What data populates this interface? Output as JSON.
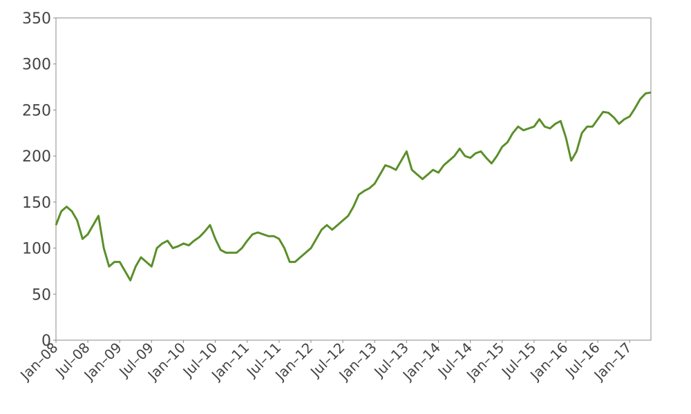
{
  "chart_data": {
    "type": "line",
    "x": [
      "2008-01",
      "2008-02",
      "2008-03",
      "2008-04",
      "2008-05",
      "2008-06",
      "2008-07",
      "2008-08",
      "2008-09",
      "2008-10",
      "2008-11",
      "2008-12",
      "2009-01",
      "2009-02",
      "2009-03",
      "2009-04",
      "2009-05",
      "2009-06",
      "2009-07",
      "2009-08",
      "2009-09",
      "2009-10",
      "2009-11",
      "2009-12",
      "2010-01",
      "2010-02",
      "2010-03",
      "2010-04",
      "2010-05",
      "2010-06",
      "2010-07",
      "2010-08",
      "2010-09",
      "2010-10",
      "2010-11",
      "2010-12",
      "2011-01",
      "2011-02",
      "2011-03",
      "2011-04",
      "2011-05",
      "2011-06",
      "2011-07",
      "2011-08",
      "2011-09",
      "2011-10",
      "2011-11",
      "2011-12",
      "2012-01",
      "2012-02",
      "2012-03",
      "2012-04",
      "2012-05",
      "2012-06",
      "2012-07",
      "2012-08",
      "2012-09",
      "2012-10",
      "2012-11",
      "2012-12",
      "2013-01",
      "2013-02",
      "2013-03",
      "2013-04",
      "2013-05",
      "2013-06",
      "2013-07",
      "2013-08",
      "2013-09",
      "2013-10",
      "2013-11",
      "2013-12",
      "2014-01",
      "2014-02",
      "2014-03",
      "2014-04",
      "2014-05",
      "2014-06",
      "2014-07",
      "2014-08",
      "2014-09",
      "2014-10",
      "2014-11",
      "2014-12",
      "2015-01",
      "2015-02",
      "2015-03",
      "2015-04",
      "2015-05",
      "2015-06",
      "2015-07",
      "2015-08",
      "2015-09",
      "2015-10",
      "2015-11",
      "2015-12",
      "2016-01",
      "2016-02",
      "2016-03",
      "2016-04",
      "2016-05",
      "2016-06",
      "2016-07",
      "2016-08",
      "2016-09",
      "2016-10",
      "2016-11",
      "2016-12",
      "2017-01",
      "2017-02",
      "2017-03",
      "2017-04",
      "2017-05"
    ],
    "series": [
      {
        "color": "#5a8f29",
        "values": [
          125,
          140,
          145,
          140,
          130,
          110,
          115,
          125,
          135,
          100,
          80,
          85,
          85,
          75,
          65,
          80,
          90,
          85,
          80,
          100,
          105,
          108,
          100,
          102,
          105,
          103,
          108,
          112,
          118,
          125,
          110,
          98,
          95,
          95,
          95,
          100,
          108,
          115,
          117,
          115,
          113,
          113,
          110,
          100,
          85,
          85,
          90,
          95,
          100,
          110,
          120,
          125,
          120,
          125,
          130,
          135,
          145,
          158,
          162,
          165,
          170,
          180,
          190,
          188,
          185,
          195,
          205,
          185,
          180,
          175,
          180,
          185,
          182,
          190,
          195,
          200,
          208,
          200,
          198,
          203,
          205,
          198,
          192,
          200,
          210,
          215,
          225,
          232,
          228,
          230,
          232,
          240,
          232,
          230,
          235,
          238,
          220,
          195,
          205,
          225,
          232,
          232,
          240,
          248,
          247,
          242,
          235,
          240,
          243,
          252,
          262,
          268,
          269
        ]
      }
    ],
    "xlim": [
      "2008-01",
      "2017-05"
    ],
    "xticks": [
      {
        "value": "2008-01",
        "label": "Jan–08"
      },
      {
        "value": "2008-07",
        "label": "Jul–08"
      },
      {
        "value": "2009-01",
        "label": "Jan–09"
      },
      {
        "value": "2009-07",
        "label": "Jul–09"
      },
      {
        "value": "2010-01",
        "label": "Jan–10"
      },
      {
        "value": "2010-07",
        "label": "Jul–10"
      },
      {
        "value": "2011-01",
        "label": "Jan–11"
      },
      {
        "value": "2011-07",
        "label": "Jul–11"
      },
      {
        "value": "2012-01",
        "label": "Jan–12"
      },
      {
        "value": "2012-07",
        "label": "Jul–12"
      },
      {
        "value": "2013-01",
        "label": "Jan–13"
      },
      {
        "value": "2013-07",
        "label": "Jul–13"
      },
      {
        "value": "2014-01",
        "label": "Jan–14"
      },
      {
        "value": "2014-07",
        "label": "Jul–14"
      },
      {
        "value": "2015-01",
        "label": "Jan–15"
      },
      {
        "value": "2015-07",
        "label": "Jul–15"
      },
      {
        "value": "2016-01",
        "label": "Jan–16"
      },
      {
        "value": "2016-07",
        "label": "Jul–16"
      },
      {
        "value": "2017-01",
        "label": "Jan–17"
      }
    ],
    "ylim": [
      0,
      350
    ],
    "yticks": [
      0,
      50,
      100,
      150,
      200,
      250,
      300,
      350
    ]
  }
}
